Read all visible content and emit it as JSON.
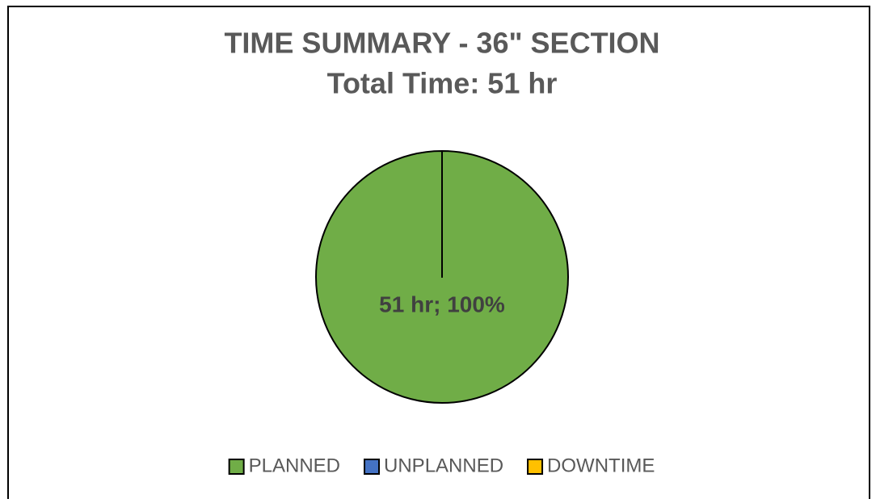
{
  "chart_data": {
    "type": "pie",
    "title": "TIME SUMMARY - 36\" SECTION",
    "subtitle": "Total Time: 51 hr",
    "categories": [
      "PLANNED",
      "UNPLANNED",
      "DOWNTIME"
    ],
    "values": [
      51,
      0,
      0
    ],
    "value_labels": [
      "51 hr; 100%",
      null,
      null
    ],
    "colors": [
      "#70ad47",
      "#4472c4",
      "#ffc000"
    ],
    "legend": "bottom"
  }
}
